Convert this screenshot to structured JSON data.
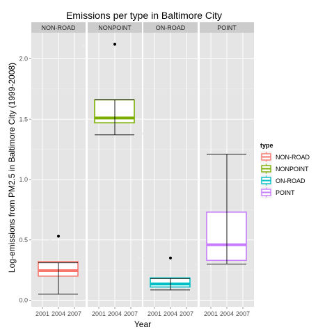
{
  "chart_data": {
    "type": "box",
    "title": "Emissions per type in Baltimore City",
    "xlabel": "Year",
    "ylabel": "Log-emissions from PM2.5 in Baltimore City (1999-2008)",
    "ylim": [
      -0.04,
      2.23
    ],
    "yticks": [
      "0.0",
      "0.5",
      "1.0",
      "1.5",
      "2.0"
    ],
    "x_categories": [
      "2001",
      "2004",
      "2007"
    ],
    "legend": {
      "title": "type",
      "position": "right"
    },
    "grid": true,
    "panels": [
      {
        "name": "NON-ROAD",
        "color": "#F8766D",
        "box": {
          "q1": 0.2,
          "median": 0.245,
          "q3": 0.32
        },
        "errorbar": {
          "low": 0.05,
          "high": 0.31
        },
        "outliers": [
          0.53
        ],
        "points": [
          {
            "x": 1.5,
            "y": 0.5
          }
        ]
      },
      {
        "name": "NONPOINT",
        "color": "#7CAE00",
        "box": {
          "q1": 1.47,
          "median": 1.51,
          "q3": 1.66
        },
        "errorbar": {
          "low": 1.37,
          "high": 1.66
        },
        "outliers": [
          2.12
        ],
        "points": [
          {
            "x": 0.05,
            "y": 2.11
          },
          {
            "x": 3.7,
            "y": 1.38
          }
        ]
      },
      {
        "name": "ON-ROAD",
        "color": "#00BFC4",
        "box": {
          "q1": 0.11,
          "median": 0.135,
          "q3": 0.185
        },
        "errorbar": {
          "low": 0.085,
          "high": 0.18
        },
        "outliers": [
          0.35
        ],
        "points": [
          {
            "x": 0.05,
            "y": 0.35
          }
        ]
      },
      {
        "name": "POINT",
        "color": "#C77CFF",
        "box": {
          "q1": 0.33,
          "median": 0.46,
          "q3": 0.73
        },
        "errorbar": {
          "low": 0.3,
          "high": 1.21
        },
        "outliers": [],
        "points": [
          {
            "x": 1.5,
            "y": 0.57
          },
          {
            "x": 0.05,
            "y": 0.3
          }
        ]
      }
    ]
  }
}
